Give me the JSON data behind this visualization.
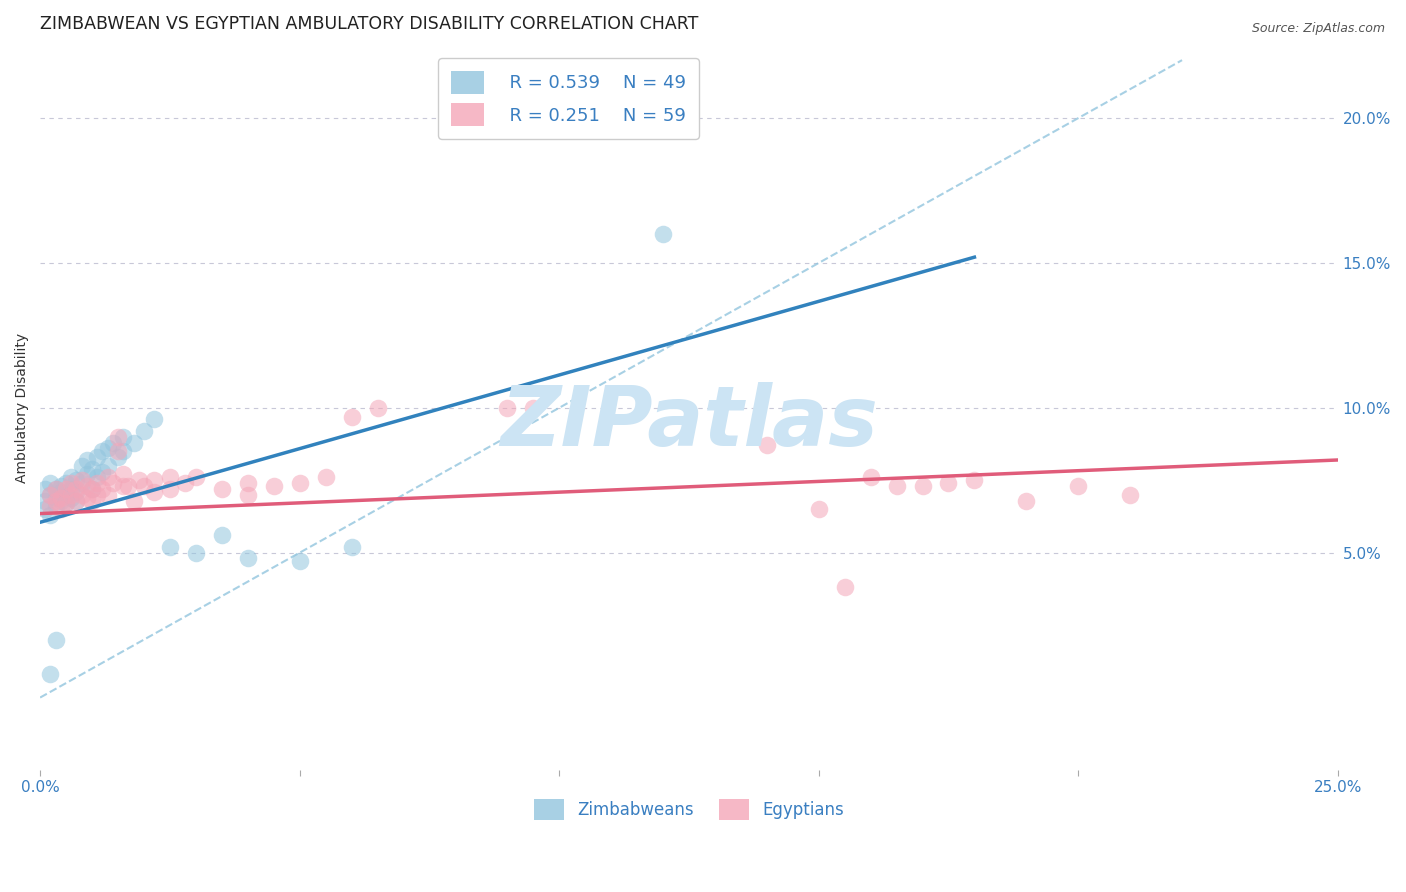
{
  "title": "ZIMBABWEAN VS EGYPTIAN AMBULATORY DISABILITY CORRELATION CHART",
  "source": "Source: ZipAtlas.com",
  "ylabel": "Ambulatory Disability",
  "watermark": "ZIPatlas",
  "xlim": [
    0.0,
    0.25
  ],
  "ylim": [
    -0.025,
    0.225
  ],
  "ytick_labels_right": [
    "5.0%",
    "10.0%",
    "15.0%",
    "20.0%"
  ],
  "ytick_vals_right": [
    0.05,
    0.1,
    0.15,
    0.2
  ],
  "legend_r1": "R = 0.539",
  "legend_n1": "N = 49",
  "legend_r2": "R = 0.251",
  "legend_n2": "N = 59",
  "legend_label1": "Zimbabweans",
  "legend_label2": "Egyptians",
  "blue_color": "#92c5de",
  "pink_color": "#f4a6b8",
  "blue_line_color": "#3182bd",
  "pink_line_color": "#e05c7a",
  "diag_line_color": "#92c5de",
  "bg_color": "#ffffff",
  "grid_color": "#c8c8d8",
  "title_fontsize": 12.5,
  "axis_label_fontsize": 10,
  "tick_fontsize": 11,
  "watermark_fontsize": 60,
  "watermark_color": "#cce4f4",
  "blue_scatter": [
    [
      0.001,
      0.068
    ],
    [
      0.001,
      0.072
    ],
    [
      0.001,
      0.065
    ],
    [
      0.002,
      0.07
    ],
    [
      0.002,
      0.074
    ],
    [
      0.002,
      0.063
    ],
    [
      0.003,
      0.069
    ],
    [
      0.003,
      0.072
    ],
    [
      0.003,
      0.066
    ],
    [
      0.004,
      0.071
    ],
    [
      0.004,
      0.068
    ],
    [
      0.004,
      0.073
    ],
    [
      0.005,
      0.07
    ],
    [
      0.005,
      0.067
    ],
    [
      0.005,
      0.074
    ],
    [
      0.006,
      0.072
    ],
    [
      0.006,
      0.069
    ],
    [
      0.006,
      0.076
    ],
    [
      0.007,
      0.071
    ],
    [
      0.007,
      0.068
    ],
    [
      0.007,
      0.075
    ],
    [
      0.008,
      0.08
    ],
    [
      0.008,
      0.074
    ],
    [
      0.009,
      0.082
    ],
    [
      0.009,
      0.077
    ],
    [
      0.01,
      0.079
    ],
    [
      0.01,
      0.072
    ],
    [
      0.011,
      0.083
    ],
    [
      0.011,
      0.076
    ],
    [
      0.012,
      0.085
    ],
    [
      0.012,
      0.078
    ],
    [
      0.013,
      0.086
    ],
    [
      0.013,
      0.08
    ],
    [
      0.014,
      0.088
    ],
    [
      0.015,
      0.083
    ],
    [
      0.016,
      0.09
    ],
    [
      0.016,
      0.085
    ],
    [
      0.018,
      0.088
    ],
    [
      0.02,
      0.092
    ],
    [
      0.022,
      0.096
    ],
    [
      0.025,
      0.052
    ],
    [
      0.03,
      0.05
    ],
    [
      0.035,
      0.056
    ],
    [
      0.04,
      0.048
    ],
    [
      0.05,
      0.047
    ],
    [
      0.06,
      0.052
    ],
    [
      0.002,
      0.008
    ],
    [
      0.003,
      0.02
    ],
    [
      0.12,
      0.16
    ]
  ],
  "pink_scatter": [
    [
      0.002,
      0.066
    ],
    [
      0.002,
      0.07
    ],
    [
      0.003,
      0.068
    ],
    [
      0.003,
      0.072
    ],
    [
      0.004,
      0.065
    ],
    [
      0.004,
      0.069
    ],
    [
      0.005,
      0.072
    ],
    [
      0.005,
      0.067
    ],
    [
      0.006,
      0.07
    ],
    [
      0.006,
      0.074
    ],
    [
      0.007,
      0.068
    ],
    [
      0.007,
      0.072
    ],
    [
      0.008,
      0.07
    ],
    [
      0.008,
      0.075
    ],
    [
      0.009,
      0.069
    ],
    [
      0.009,
      0.073
    ],
    [
      0.01,
      0.072
    ],
    [
      0.01,
      0.068
    ],
    [
      0.011,
      0.074
    ],
    [
      0.011,
      0.07
    ],
    [
      0.012,
      0.072
    ],
    [
      0.013,
      0.076
    ],
    [
      0.013,
      0.07
    ],
    [
      0.014,
      0.074
    ],
    [
      0.015,
      0.09
    ],
    [
      0.015,
      0.085
    ],
    [
      0.016,
      0.073
    ],
    [
      0.016,
      0.077
    ],
    [
      0.017,
      0.073
    ],
    [
      0.018,
      0.068
    ],
    [
      0.019,
      0.075
    ],
    [
      0.02,
      0.073
    ],
    [
      0.022,
      0.075
    ],
    [
      0.022,
      0.071
    ],
    [
      0.025,
      0.076
    ],
    [
      0.025,
      0.072
    ],
    [
      0.028,
      0.074
    ],
    [
      0.03,
      0.076
    ],
    [
      0.035,
      0.072
    ],
    [
      0.04,
      0.074
    ],
    [
      0.04,
      0.07
    ],
    [
      0.045,
      0.073
    ],
    [
      0.05,
      0.074
    ],
    [
      0.055,
      0.076
    ],
    [
      0.06,
      0.097
    ],
    [
      0.065,
      0.1
    ],
    [
      0.09,
      0.1
    ],
    [
      0.095,
      0.1
    ],
    [
      0.14,
      0.087
    ],
    [
      0.15,
      0.065
    ],
    [
      0.155,
      0.038
    ],
    [
      0.16,
      0.076
    ],
    [
      0.165,
      0.073
    ],
    [
      0.17,
      0.073
    ],
    [
      0.175,
      0.074
    ],
    [
      0.18,
      0.075
    ],
    [
      0.19,
      0.068
    ],
    [
      0.2,
      0.073
    ],
    [
      0.21,
      0.07
    ]
  ],
  "blue_line_x": [
    0.0,
    0.18
  ],
  "blue_line_y": [
    0.0605,
    0.152
  ],
  "pink_line_x": [
    0.0,
    0.25
  ],
  "pink_line_y": [
    0.0635,
    0.082
  ],
  "diag_line_x": [
    0.0,
    0.22
  ],
  "diag_line_y": [
    0.0,
    0.22
  ]
}
